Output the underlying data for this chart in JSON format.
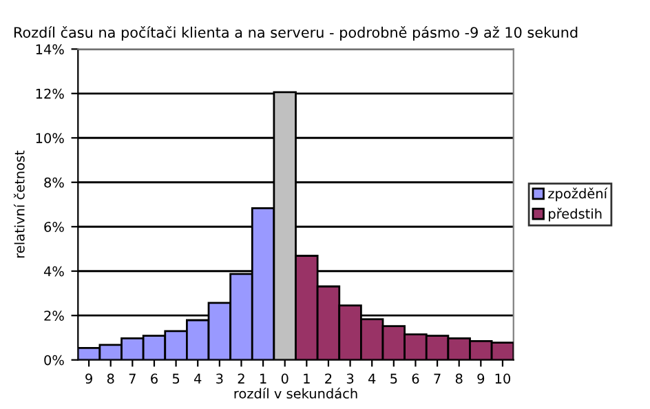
{
  "chart_data": {
    "type": "bar",
    "title": "Rozdíl času na počítači klienta a na serveru - podrobně pásmo -9 až 10 sekund",
    "xlabel": "rozdíl v sekundách",
    "ylabel": "relativní četnost",
    "categories": [
      "9",
      "8",
      "7",
      "6",
      "5",
      "4",
      "3",
      "2",
      "1",
      "0",
      "1",
      "2",
      "3",
      "4",
      "5",
      "6",
      "7",
      "8",
      "9",
      "10"
    ],
    "series": [
      {
        "name": "zpoždění",
        "color": "#9999ff",
        "values": [
          0.54,
          0.68,
          0.97,
          1.09,
          1.3,
          1.79,
          2.57,
          3.87,
          6.83,
          null,
          null,
          null,
          null,
          null,
          null,
          null,
          null,
          null,
          null,
          null
        ]
      },
      {
        "color": "#c0c0c0",
        "values": [
          null,
          null,
          null,
          null,
          null,
          null,
          null,
          null,
          null,
          12.06,
          null,
          null,
          null,
          null,
          null,
          null,
          null,
          null,
          null,
          null
        ]
      },
      {
        "name": "předstih",
        "color": "#993366",
        "values": [
          null,
          null,
          null,
          null,
          null,
          null,
          null,
          null,
          null,
          null,
          4.69,
          3.31,
          2.45,
          1.83,
          1.52,
          1.15,
          1.09,
          0.97,
          0.85,
          0.78
        ]
      }
    ],
    "ylim": [
      0,
      14
    ],
    "yticks": [
      {
        "value": 0,
        "label": "0%"
      },
      {
        "value": 2,
        "label": "2%"
      },
      {
        "value": 4,
        "label": "4%"
      },
      {
        "value": 6,
        "label": "6%"
      },
      {
        "value": 8,
        "label": "8%"
      },
      {
        "value": 10,
        "label": "10%"
      },
      {
        "value": 12,
        "label": "12%"
      },
      {
        "value": 14,
        "label": "14%"
      }
    ],
    "grid": "y",
    "legend": "right"
  }
}
